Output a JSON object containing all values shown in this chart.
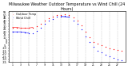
{
  "title": "Milwaukee Weather Outdoor Temperature vs Wind Chill (24 Hours)",
  "title_fontsize": 3.5,
  "legend_labels": [
    "Outdoor Temp",
    "Wind Chill"
  ],
  "temp_color": "#ff0000",
  "windchill_color": "#0000ff",
  "x_hours": [
    1,
    2,
    3,
    4,
    5,
    6,
    7,
    8,
    9,
    10,
    11,
    12,
    13,
    14,
    15,
    16,
    17,
    18,
    19,
    20,
    21,
    22,
    23,
    24,
    25,
    26,
    27,
    28
  ],
  "temp_values": [
    28,
    28,
    27,
    27,
    27,
    28,
    30,
    35,
    40,
    45,
    48,
    50,
    51,
    52,
    50,
    46,
    40,
    32,
    20,
    10,
    2,
    -2,
    -5,
    -8,
    -10,
    -12,
    -13,
    -14
  ],
  "windchill_values": [
    20,
    20,
    20,
    19,
    18,
    18,
    22,
    28,
    34,
    40,
    44,
    47,
    48,
    49,
    47,
    41,
    34,
    24,
    12,
    1,
    -8,
    -14,
    -18,
    -22,
    -25,
    -28,
    -30,
    -32
  ],
  "ylim": [
    -35,
    58
  ],
  "ytick_step": 5,
  "background_color": "#ffffff",
  "dot_size": 0.9,
  "vgrid_color": "#aaaaaa",
  "vgrid_positions": [
    1,
    3,
    5,
    7,
    9,
    11,
    13,
    15,
    17,
    19,
    21,
    23,
    25,
    27
  ],
  "xlim": [
    0,
    29
  ],
  "xtick_positions": [
    1,
    3,
    5,
    7,
    9,
    11,
    13,
    15,
    17,
    19,
    21,
    23,
    25,
    27
  ],
  "xtick_labels": [
    "1",
    "3",
    "5",
    "7",
    "9",
    "11",
    "13",
    "15",
    "17",
    "19",
    "21",
    "23",
    "25",
    "27"
  ],
  "ytick_fontsize": 2.5,
  "xtick_fontsize": 2.2,
  "legend_fontsize": 2.5
}
